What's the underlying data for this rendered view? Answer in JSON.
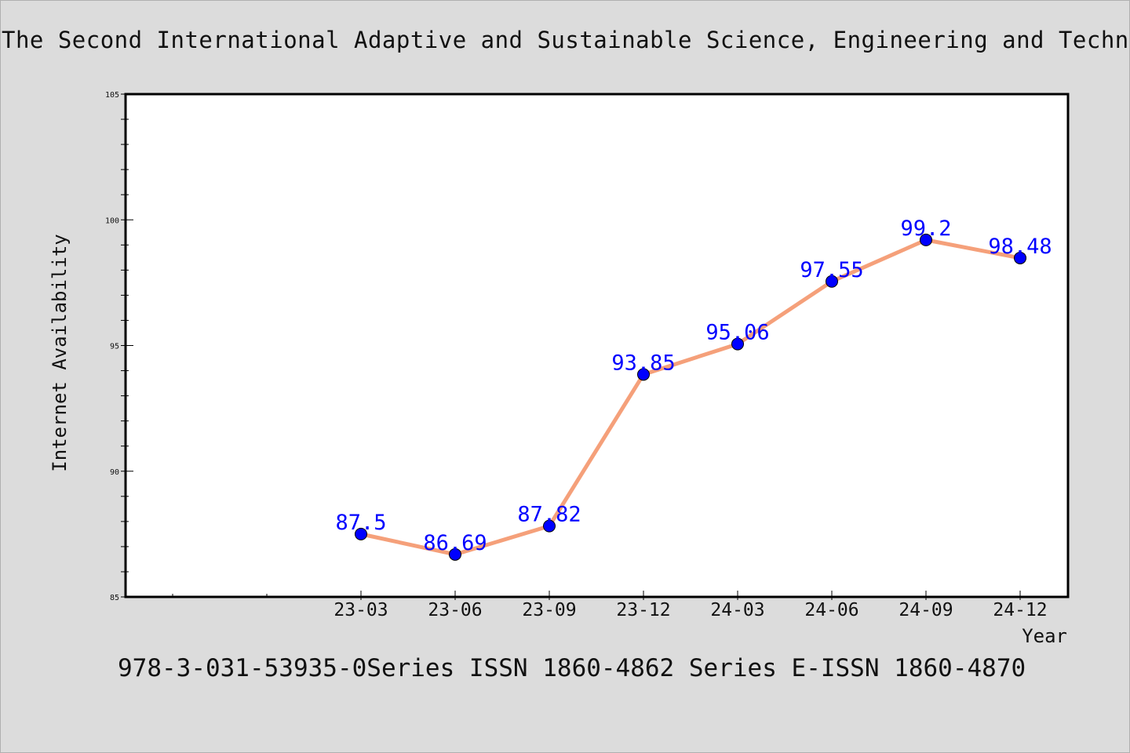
{
  "header": {
    "title": "The Second International Adaptive and Sustainable Science, Engineering and Techn"
  },
  "footer": {
    "caption": "978-3-031-53935-0Series ISSN 1860-4862 Series E-ISSN 1860-4870"
  },
  "colors": {
    "line": "#f5a07a",
    "marker": "#0000ff",
    "data_label": "#0000ff",
    "plot_background": "#ffffff",
    "page_background": "#dcdcdc"
  },
  "chart_data": {
    "type": "line",
    "title": "",
    "xlabel": "Year",
    "ylabel": "Internet Availability",
    "categories": [
      "23-03",
      "23-06",
      "23-09",
      "23-12",
      "24-03",
      "24-06",
      "24-09",
      "24-12"
    ],
    "values": [
      87.5,
      86.69,
      87.82,
      93.85,
      95.06,
      97.55,
      99.2,
      98.48
    ],
    "data_labels": [
      "87.5",
      "86.69",
      "87.82",
      "93.85",
      "95.06",
      "97.55",
      "99.2",
      "98.48"
    ],
    "ylim": [
      85,
      105
    ],
    "yticks": [
      "85",
      "90",
      "95",
      "100",
      "105"
    ],
    "grid": false,
    "legend": "none"
  }
}
